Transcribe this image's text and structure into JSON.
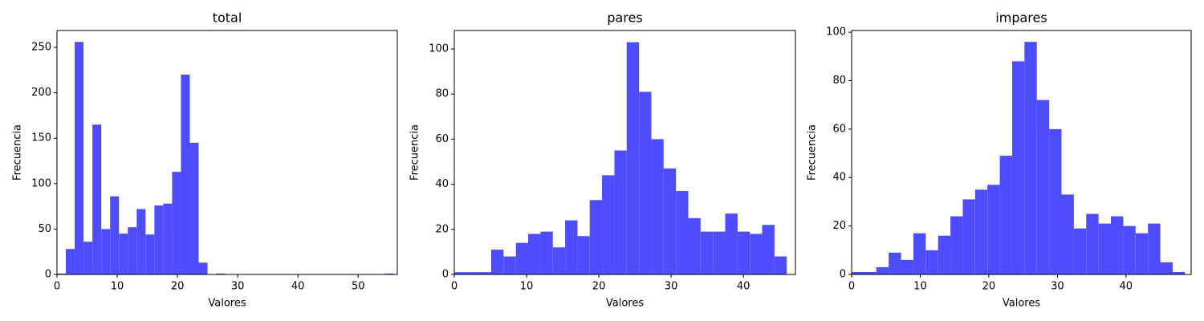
{
  "chart_data": [
    {
      "type": "histogram",
      "title": "total",
      "xlabel": "Valores",
      "ylabel": "Frecuencia",
      "color": "#4d4dff",
      "bins": [
        0,
        1.47,
        2.94,
        4.41,
        5.88,
        7.35,
        8.82,
        10.29,
        11.76,
        13.23,
        14.7,
        16.17,
        17.64,
        19.11,
        20.58,
        22.05,
        23.52,
        24.99,
        26.46,
        27.93,
        29.4,
        30.87,
        32.34,
        33.81,
        35.28,
        36.75,
        38.22,
        39.69,
        41.16,
        42.63,
        44.1,
        45.57,
        47.04,
        48.51,
        49.98,
        51.45,
        52.92,
        54.39,
        55.86
      ],
      "values": [
        1,
        28,
        256,
        36,
        165,
        50,
        86,
        45,
        52,
        72,
        44,
        76,
        78,
        113,
        220,
        145,
        13,
        0,
        1,
        0,
        0,
        0,
        0,
        0,
        0,
        0,
        0,
        0,
        0,
        0,
        0,
        0,
        0,
        0,
        0,
        0,
        0,
        1
      ],
      "xlim": [
        0,
        56.5
      ],
      "xticks": [
        0,
        10,
        20,
        30,
        40,
        50
      ],
      "ylim": [
        0,
        268.6
      ],
      "yticks": [
        0,
        50,
        100,
        150,
        200,
        250
      ]
    },
    {
      "type": "histogram",
      "title": "pares",
      "xlabel": "Valores",
      "ylabel": "Frecuencia",
      "color": "#4d4dff",
      "bins": [
        0,
        1.7,
        3.41,
        5.11,
        6.81,
        8.52,
        10.22,
        11.93,
        13.63,
        15.33,
        17.04,
        18.74,
        20.44,
        22.15,
        23.85,
        25.56,
        27.26,
        28.96,
        30.67,
        32.37,
        34.07,
        35.78,
        37.48,
        39.19,
        40.89,
        42.59,
        44.3,
        46
      ],
      "values": [
        1,
        1,
        1,
        11,
        8,
        14,
        18,
        19,
        12,
        24,
        17,
        33,
        44,
        55,
        103,
        81,
        60,
        47,
        37,
        25,
        19,
        19,
        27,
        19,
        18,
        22,
        8
      ],
      "xlim": [
        0,
        47.2
      ],
      "xticks": [
        0,
        10,
        20,
        30,
        40
      ],
      "ylim": [
        0,
        108.2
      ],
      "yticks": [
        0,
        20,
        40,
        60,
        80,
        100
      ]
    },
    {
      "type": "histogram",
      "title": "impares",
      "xlabel": "Valores",
      "ylabel": "Frecuencia",
      "color": "#4d4dff",
      "bins": [
        0,
        1.8,
        3.6,
        5.4,
        7.2,
        9,
        10.8,
        12.6,
        14.4,
        16.2,
        18,
        19.8,
        21.6,
        23.4,
        25.2,
        27,
        28.8,
        30.6,
        32.4,
        34.2,
        36,
        37.8,
        39.6,
        41.4,
        43.2,
        45,
        46.8,
        48.6
      ],
      "values": [
        1,
        1,
        3,
        9,
        6,
        17,
        10,
        16,
        24,
        31,
        35,
        37,
        49,
        88,
        96,
        72,
        60,
        33,
        19,
        25,
        21,
        24,
        20,
        17,
        21,
        5,
        1
      ],
      "xlim": [
        0,
        49.5
      ],
      "xticks": [
        0,
        10,
        20,
        30,
        40
      ],
      "ylim": [
        0,
        100.7
      ],
      "yticks": [
        0,
        20,
        40,
        60,
        80,
        100
      ]
    }
  ]
}
